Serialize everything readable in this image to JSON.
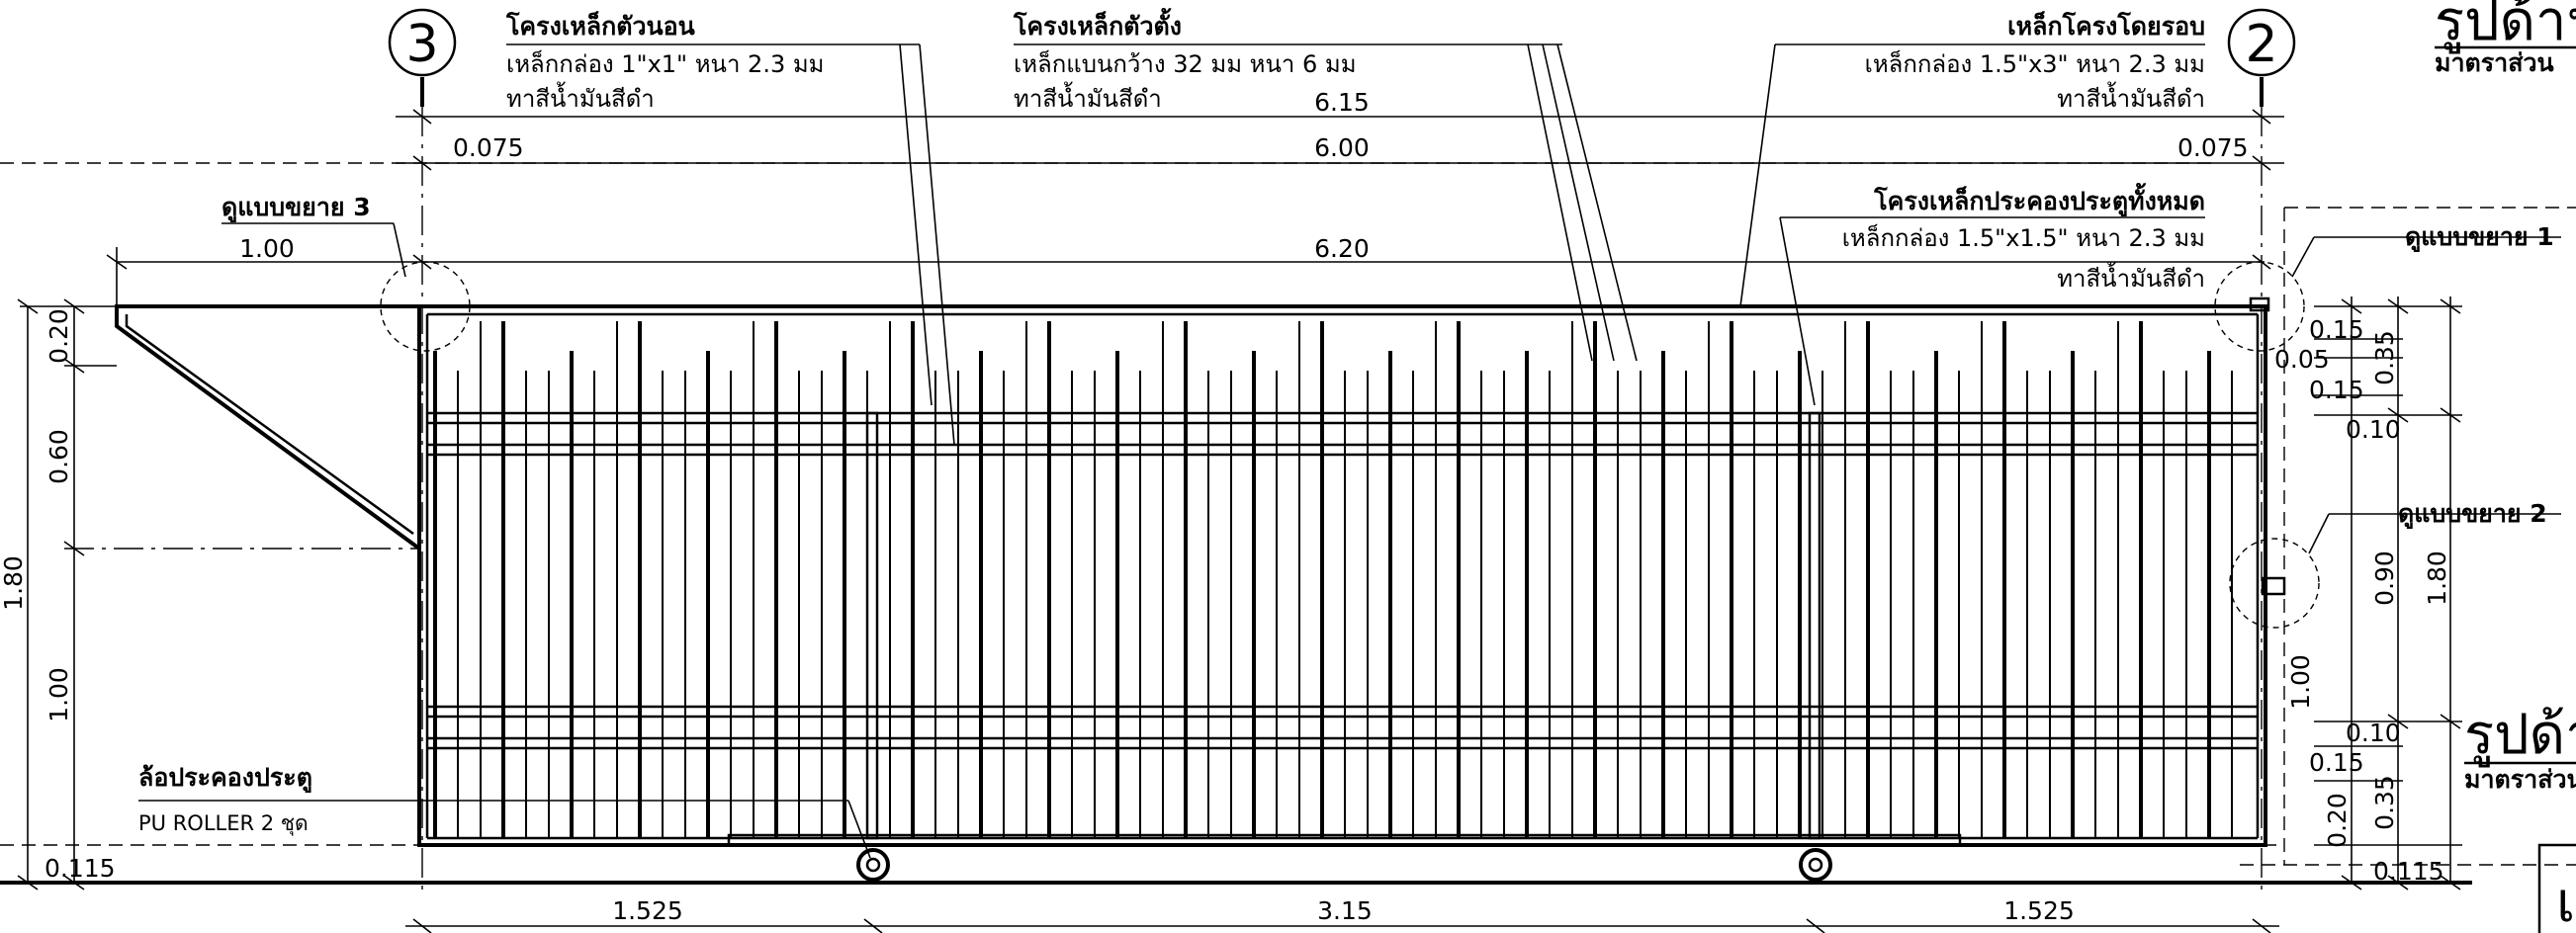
{
  "grid_bubbles": {
    "left": "3",
    "right": "2"
  },
  "callouts": {
    "horizontal_frame": {
      "title": "โครงเหล็กตัวนอน",
      "line1": "เหล็กกล่อง 1\"x1\"  หนา 2.3  มม",
      "line2": "ทาสีน้ำมันสีดำ"
    },
    "vertical_bars": {
      "title": "โครงเหล็กตัวตั้ง",
      "line1": "เหล็กแบนกว้าง 32  มม  หนา 6  มม",
      "line2": "ทาสีน้ำมันสีดำ"
    },
    "perimeter_frame": {
      "title": "เหล็กโครงโดยรอบ",
      "line1": "เหล็กกล่อง 1.5\"x3\"  หนา 2.3  มม",
      "line2": "ทาสีน้ำมันสีดำ"
    },
    "gate_frame": {
      "title": "โครงเหล็กประคองประตูทั้งหมด",
      "line1": "เหล็กกล่อง 1.5\"x1.5\"  หนา 2.3  มม",
      "line2": "ทาสีน้ำมันสีดำ"
    },
    "roller": {
      "title": "ล้อประคองประตู",
      "line1": "PU  ROLLER   2  ชุด"
    },
    "detail_1": "ดูแบบขยาย 1",
    "detail_2": "ดูแบบขยาย 2",
    "detail_3": "ดูแบบขยาย 3"
  },
  "dimensions": {
    "top_overall": "6.15",
    "top_inner": "6.00",
    "top_offset_left": "0.075",
    "top_offset_right": "0.075",
    "tail_length": "1.00",
    "gate_length": "6.20",
    "left_h1": "0.20",
    "left_h2": "0.60",
    "left_h3": "1.00",
    "left_total": "1.80",
    "bottom_left_offset": "0.115",
    "bottom_right_offset": "0.115",
    "bottom_1": "1.525",
    "bottom_2": "3.15",
    "bottom_3": "1.525",
    "right_a": "0.15",
    "right_b": "0.05",
    "right_c": "0.15",
    "right_d": "0.10",
    "right_e": "0.35",
    "right_f": "0.90",
    "right_g": "1.80",
    "right_h": "1.00",
    "right_i": "0.10",
    "right_j": "0.15",
    "right_k": "0.20",
    "right_l": "0.35"
  },
  "side_titles": {
    "upper_title": "รูปด้าน",
    "upper_scale": "มาตราส่วน",
    "lower_title": "รูปด้าน",
    "lower_scale": "มาตราส่วน"
  }
}
